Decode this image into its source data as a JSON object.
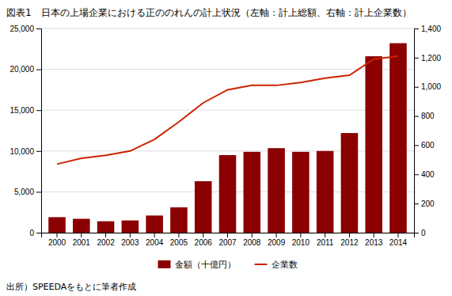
{
  "chart_data": {
    "type": "bar",
    "title": "図表1　日本の上場企業における正ののれんの計上状況（左軸：計上総額、右軸：計上企業数）",
    "categories": [
      "2000",
      "2001",
      "2002",
      "2003",
      "2004",
      "2005",
      "2006",
      "2007",
      "2008",
      "2009",
      "2010",
      "2011",
      "2012",
      "2013",
      "2014"
    ],
    "series": [
      {
        "name": "金額（十億円）",
        "type": "bar",
        "color": "#8B0000",
        "values": [
          1900,
          1700,
          1400,
          1500,
          2100,
          3100,
          6300,
          9500,
          9900,
          10350,
          9900,
          10000,
          12200,
          21600,
          23200
        ]
      },
      {
        "name": "企業数",
        "type": "line",
        "axis": "y2",
        "color": "#CC2200",
        "values": [
          470,
          510,
          530,
          560,
          640,
          760,
          890,
          980,
          1010,
          1010,
          1030,
          1060,
          1080,
          1190,
          1210
        ]
      }
    ],
    "ylim": [
      0,
      25000
    ],
    "yticks": [
      0,
      {
        "value": 5000,
        "label": "5,000"
      },
      {
        "value": 10000,
        "label": "10,000"
      },
      {
        "value": 15000,
        "label": "15,000"
      },
      {
        "value": 20000,
        "label": "20,000"
      },
      {
        "value": 25000,
        "label": "25,000"
      }
    ],
    "y2lim": [
      0,
      1400
    ],
    "y2ticks": [
      0,
      200,
      400,
      600,
      800,
      {
        "value": 1000,
        "label": "1,000"
      },
      {
        "value": 1200,
        "label": "1,200"
      },
      {
        "value": 1400,
        "label": "1,400"
      }
    ],
    "grid": true,
    "legend": "bottom",
    "annotations": [
      "出所）SPEEDAをもとに筆者作成"
    ]
  }
}
